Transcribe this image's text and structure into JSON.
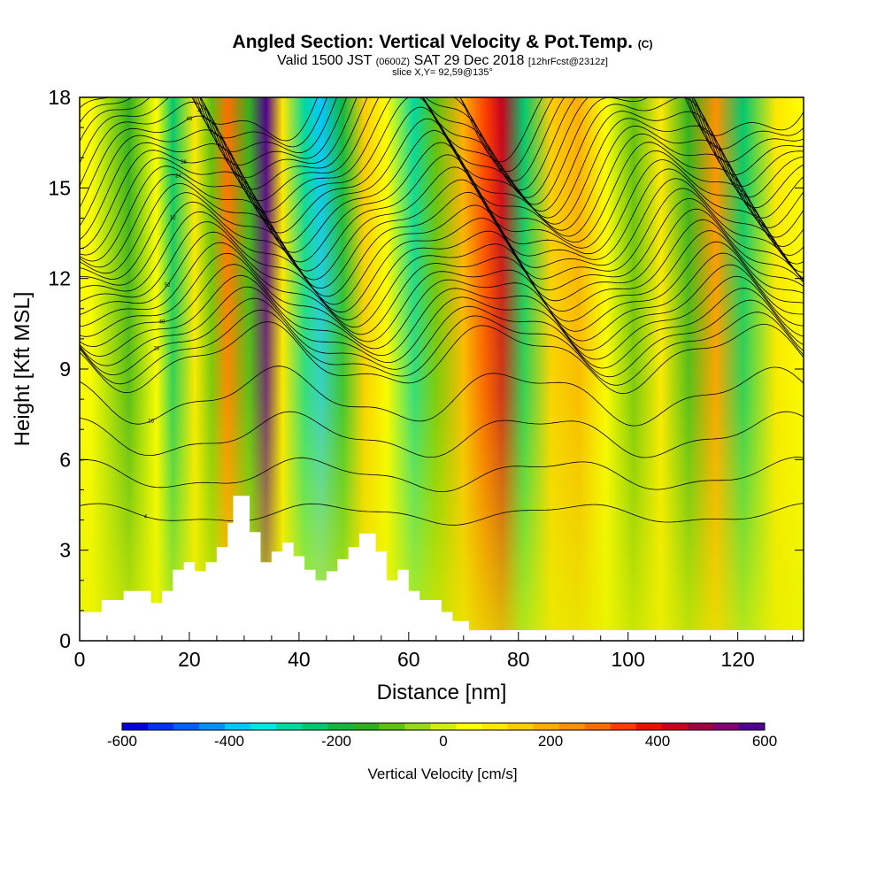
{
  "header": {
    "title": "Angled Section: Vertical Velocity & Pot.Temp.",
    "title_tag": "(C)",
    "valid_prefix": "Valid 1500 JST",
    "valid_utc": "(0600Z)",
    "valid_date": "SAT 29 Dec 2018",
    "forecast": "[12hrFcst@2312z]",
    "slice": "slice X,Y= 92,59@135°"
  },
  "chart_data": {
    "type": "heatmap",
    "xlabel": "Distance [nm]",
    "ylabel": "Height [Kft MSL]",
    "xlim": [
      0,
      132
    ],
    "ylim": [
      0,
      18
    ],
    "x_ticks": [
      0,
      20,
      40,
      60,
      80,
      100,
      120
    ],
    "y_ticks": [
      0,
      3,
      6,
      9,
      12,
      15,
      18
    ],
    "x_tick_labels": [
      "0",
      "20",
      "40",
      "60",
      "80",
      "100",
      "120"
    ],
    "y_tick_labels": [
      "0",
      "3",
      "6",
      "9",
      "12",
      "15",
      "18"
    ],
    "colorbar": {
      "label": "Vertical Velocity [cm/s]",
      "range": [
        -600,
        600
      ],
      "ticks": [
        -600,
        -400,
        -200,
        0,
        200,
        400,
        600
      ],
      "tick_labels": [
        "-600",
        "-400",
        "-200",
        "0",
        "200",
        "400",
        "600"
      ],
      "colors": [
        "#0000d8",
        "#0030f0",
        "#0060ff",
        "#0090ff",
        "#00c8ff",
        "#00e8e0",
        "#00d8a0",
        "#00c870",
        "#10b840",
        "#30b020",
        "#60c010",
        "#98d818",
        "#d0ec10",
        "#ffff00",
        "#ffe800",
        "#ffcc00",
        "#ffae00",
        "#ff9000",
        "#ff6c00",
        "#ff3c00",
        "#e81000",
        "#c80020",
        "#a00040",
        "#800070",
        "#500090"
      ]
    },
    "velocity_bands": [
      {
        "x": 2,
        "value": 60
      },
      {
        "x": 9,
        "value": -150
      },
      {
        "x": 14,
        "value": 40
      },
      {
        "x": 17,
        "value": -220
      },
      {
        "x": 21,
        "value": 80
      },
      {
        "x": 24,
        "value": -120
      },
      {
        "x": 27,
        "value": 300
      },
      {
        "x": 31,
        "value": -160
      },
      {
        "x": 34,
        "value": 560
      },
      {
        "x": 37,
        "value": 80
      },
      {
        "x": 41,
        "value": -270
      },
      {
        "x": 44,
        "value": -380
      },
      {
        "x": 48,
        "value": -200
      },
      {
        "x": 52,
        "value": 120
      },
      {
        "x": 56,
        "value": 60
      },
      {
        "x": 61,
        "value": -300
      },
      {
        "x": 65,
        "value": -120
      },
      {
        "x": 70,
        "value": 200
      },
      {
        "x": 74,
        "value": 320
      },
      {
        "x": 77,
        "value": 420
      },
      {
        "x": 81,
        "value": -230
      },
      {
        "x": 86,
        "value": 130
      },
      {
        "x": 91,
        "value": 200
      },
      {
        "x": 96,
        "value": 60
      },
      {
        "x": 101,
        "value": -100
      },
      {
        "x": 106,
        "value": 90
      },
      {
        "x": 111,
        "value": -150
      },
      {
        "x": 116,
        "value": 240
      },
      {
        "x": 121,
        "value": -220
      },
      {
        "x": 127,
        "value": 100
      },
      {
        "x": 132,
        "value": 50
      }
    ],
    "terrain": [
      [
        0,
        0.95
      ],
      [
        4,
        0.95
      ],
      [
        4,
        1.35
      ],
      [
        8,
        1.35
      ],
      [
        8,
        1.65
      ],
      [
        13,
        1.65
      ],
      [
        13,
        1.25
      ],
      [
        15,
        1.25
      ],
      [
        15,
        1.65
      ],
      [
        17,
        1.65
      ],
      [
        17,
        2.35
      ],
      [
        19,
        2.35
      ],
      [
        19,
        2.6
      ],
      [
        21,
        2.6
      ],
      [
        21,
        2.3
      ],
      [
        23,
        2.3
      ],
      [
        23,
        2.6
      ],
      [
        25,
        2.6
      ],
      [
        25,
        3.1
      ],
      [
        27,
        3.1
      ],
      [
        27,
        3.9
      ],
      [
        28,
        3.9
      ],
      [
        28,
        4.8
      ],
      [
        31,
        4.8
      ],
      [
        31,
        3.6
      ],
      [
        33,
        3.6
      ],
      [
        33,
        2.6
      ],
      [
        35,
        2.6
      ],
      [
        35,
        2.95
      ],
      [
        37,
        2.95
      ],
      [
        37,
        3.25
      ],
      [
        39,
        3.25
      ],
      [
        39,
        2.8
      ],
      [
        41,
        2.8
      ],
      [
        41,
        2.35
      ],
      [
        43,
        2.35
      ],
      [
        43,
        2.0
      ],
      [
        45,
        2.0
      ],
      [
        45,
        2.3
      ],
      [
        47,
        2.3
      ],
      [
        47,
        2.7
      ],
      [
        49,
        2.7
      ],
      [
        49,
        3.1
      ],
      [
        51,
        3.1
      ],
      [
        51,
        3.55
      ],
      [
        54,
        3.55
      ],
      [
        54,
        2.95
      ],
      [
        56,
        2.95
      ],
      [
        56,
        2.0
      ],
      [
        58,
        2.0
      ],
      [
        58,
        2.35
      ],
      [
        60,
        2.35
      ],
      [
        60,
        1.65
      ],
      [
        62,
        1.65
      ],
      [
        62,
        1.35
      ],
      [
        66,
        1.35
      ],
      [
        66,
        0.95
      ],
      [
        68,
        0.95
      ],
      [
        68,
        0.65
      ],
      [
        71,
        0.65
      ],
      [
        71,
        0.35
      ],
      [
        132,
        0.35
      ]
    ],
    "isentrope_labels": [
      "4",
      "8",
      "12",
      "16",
      "20",
      "24",
      "28",
      "32",
      "36",
      "40",
      "44",
      "48",
      "52"
    ]
  }
}
